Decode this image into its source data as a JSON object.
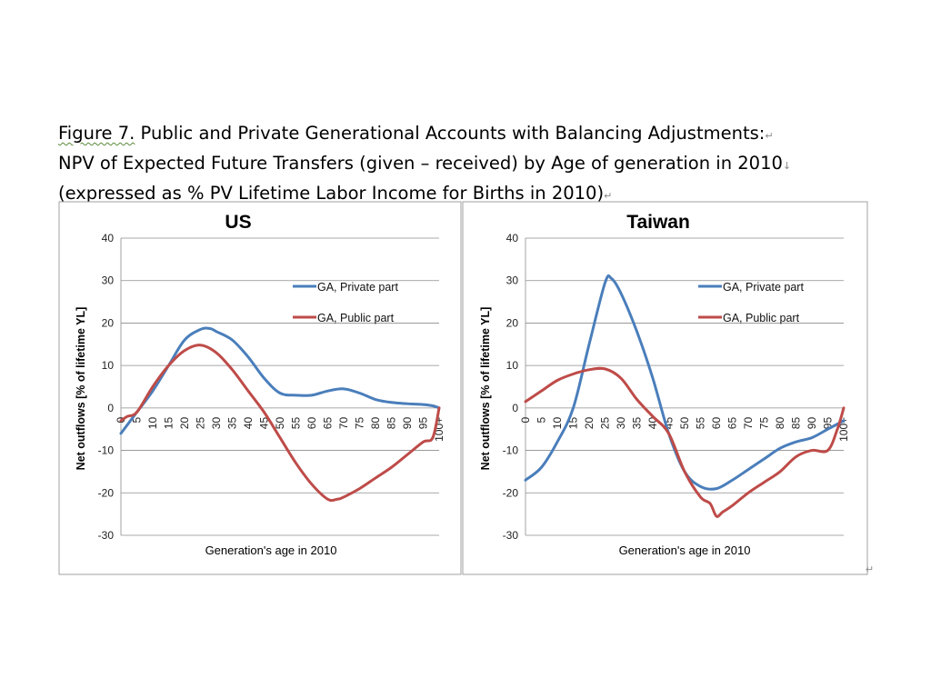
{
  "figure": {
    "label": "Figure 7.",
    "title_line1_rest": " Public and Private Generational Accounts with Balancing Adjustments:",
    "title_line2": "NPV of Expected Future Transfers (given – received) by Age of generation in 2010",
    "title_line3": "(expressed as % PV Lifetime Labor Income for Births in 2010)",
    "para_mark": "↵",
    "line_mark": "↓"
  },
  "chart_data": [
    {
      "type": "line",
      "title": "US",
      "xlabel": "Generation's age in 2010",
      "ylabel": "Net outflows [% of lifetime YL]",
      "ylim": [
        -30,
        40
      ],
      "yticks": [
        40,
        30,
        20,
        10,
        0,
        -10,
        -20,
        -30
      ],
      "xticks": [
        "0",
        "5",
        "10",
        "15",
        "20",
        "25",
        "30",
        "35",
        "40",
        "45",
        "50",
        "55",
        "60",
        "65",
        "70",
        "75",
        "80",
        "85",
        "90",
        "95",
        "100+"
      ],
      "grid": true,
      "legend_position": "right",
      "series": [
        {
          "name": "GA, Private part",
          "color": "#4a7ebb",
          "x": [
            0,
            5,
            10,
            15,
            20,
            25,
            28,
            30,
            35,
            40,
            45,
            50,
            55,
            60,
            65,
            70,
            75,
            80,
            85,
            90,
            95,
            98,
            100
          ],
          "y": [
            -6,
            -1,
            4,
            10,
            16,
            18.5,
            18.7,
            18,
            16,
            12,
            7,
            3.5,
            3,
            3,
            4,
            4.5,
            3.5,
            2,
            1.3,
            1,
            0.8,
            0.5,
            0
          ]
        },
        {
          "name": "GA, Public part",
          "color": "#be4b48",
          "x": [
            0,
            2,
            5,
            10,
            15,
            20,
            25,
            30,
            35,
            40,
            45,
            50,
            55,
            60,
            65,
            68,
            70,
            75,
            80,
            85,
            90,
            95,
            98,
            100
          ],
          "y": [
            -3,
            -2,
            -1,
            5,
            10,
            13.5,
            14.8,
            13,
            9,
            4,
            -1,
            -7,
            -13,
            -18,
            -21.5,
            -21.5,
            -21,
            -19,
            -16.5,
            -14,
            -11,
            -8,
            -7,
            0
          ]
        }
      ]
    },
    {
      "type": "line",
      "title": "Taiwan",
      "xlabel": "Generation's age in 2010",
      "ylabel": "Net outflows [% of lifetime YL]",
      "ylim": [
        -30,
        40
      ],
      "yticks": [
        40,
        30,
        20,
        10,
        0,
        -10,
        -20,
        -30
      ],
      "xticks": [
        "0",
        "5",
        "10",
        "15",
        "20",
        "25",
        "30",
        "35",
        "40",
        "45",
        "50",
        "55",
        "60",
        "65",
        "70",
        "75",
        "80",
        "85",
        "90",
        "95",
        "100+"
      ],
      "grid": true,
      "legend_position": "right",
      "series": [
        {
          "name": "GA, Private part",
          "color": "#4a7ebb",
          "x": [
            0,
            5,
            10,
            15,
            20,
            25,
            27,
            30,
            35,
            40,
            45,
            50,
            55,
            60,
            65,
            70,
            75,
            80,
            85,
            90,
            95,
            100
          ],
          "y": [
            -17,
            -14,
            -8,
            0,
            15,
            29.5,
            30.5,
            27,
            18,
            7,
            -6,
            -15,
            -18.5,
            -19,
            -17,
            -14.5,
            -12,
            -9.5,
            -8,
            -7,
            -5,
            -3
          ]
        },
        {
          "name": "GA, Public part",
          "color": "#be4b48",
          "x": [
            0,
            5,
            10,
            15,
            20,
            25,
            30,
            35,
            40,
            45,
            50,
            55,
            58,
            60,
            62,
            65,
            70,
            75,
            80,
            85,
            90,
            95,
            98,
            100
          ],
          "y": [
            1.5,
            4,
            6.5,
            8,
            9,
            9.2,
            7,
            2,
            -2,
            -6,
            -15,
            -21,
            -22.5,
            -25.5,
            -24.5,
            -23,
            -20,
            -17.5,
            -15,
            -11.5,
            -10,
            -10,
            -5,
            0
          ]
        }
      ]
    }
  ]
}
